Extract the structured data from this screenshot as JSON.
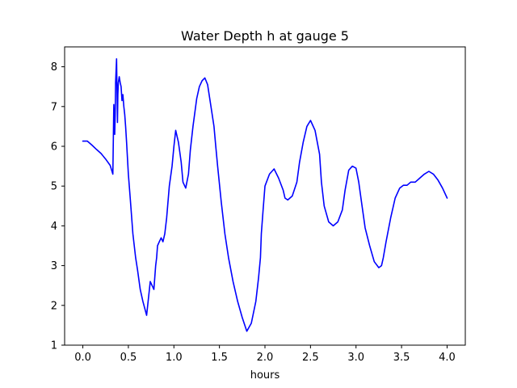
{
  "chart_data": {
    "type": "line",
    "title": "Water Depth h at gauge 5",
    "xlabel": "hours",
    "ylabel": "",
    "xlim": [
      -0.2,
      4.2
    ],
    "ylim": [
      1,
      8.5
    ],
    "xticks": [
      0.0,
      0.5,
      1.0,
      1.5,
      2.0,
      2.5,
      3.0,
      3.5,
      4.0
    ],
    "xtick_labels": [
      "0.0",
      "0.5",
      "1.0",
      "1.5",
      "2.0",
      "2.5",
      "3.0",
      "3.5",
      "4.0"
    ],
    "yticks": [
      1,
      2,
      3,
      4,
      5,
      6,
      7,
      8
    ],
    "ytick_labels": [
      "1",
      "2",
      "3",
      "4",
      "5",
      "6",
      "7",
      "8"
    ],
    "grid": false,
    "legend": "none",
    "line_color": "#0000ff",
    "series": [
      {
        "x": [
          0.0,
          0.05,
          0.1,
          0.15,
          0.2,
          0.25,
          0.3,
          0.33,
          0.34,
          0.35,
          0.355,
          0.36,
          0.37,
          0.38,
          0.385,
          0.39,
          0.4,
          0.41,
          0.42,
          0.43,
          0.44,
          0.45,
          0.46,
          0.47,
          0.48,
          0.49,
          0.5,
          0.52,
          0.55,
          0.58,
          0.6,
          0.63,
          0.66,
          0.7,
          0.74,
          0.78,
          0.8,
          0.81,
          0.82,
          0.84,
          0.86,
          0.88,
          0.9,
          0.92,
          0.95,
          0.98,
          1.0,
          1.02,
          1.05,
          1.08,
          1.1,
          1.13,
          1.16,
          1.18,
          1.21,
          1.25,
          1.28,
          1.31,
          1.34,
          1.37,
          1.4,
          1.44,
          1.46,
          1.48,
          1.52,
          1.56,
          1.6,
          1.65,
          1.7,
          1.75,
          1.8,
          1.85,
          1.9,
          1.93,
          1.95,
          1.96,
          1.98,
          2.0,
          2.05,
          2.1,
          2.15,
          2.2,
          2.22,
          2.25,
          2.3,
          2.35,
          2.38,
          2.42,
          2.46,
          2.5,
          2.55,
          2.6,
          2.62,
          2.65,
          2.7,
          2.75,
          2.8,
          2.85,
          2.88,
          2.92,
          2.96,
          3.0,
          3.03,
          3.06,
          3.1,
          3.15,
          3.2,
          3.25,
          3.28,
          3.3,
          3.33,
          3.38,
          3.43,
          3.48,
          3.52,
          3.56,
          3.6,
          3.65,
          3.7,
          3.75,
          3.8,
          3.85,
          3.9,
          3.95,
          4.0
        ],
        "values": [
          6.13,
          6.13,
          6.03,
          5.92,
          5.82,
          5.68,
          5.52,
          5.3,
          7.05,
          6.3,
          6.8,
          7.6,
          8.2,
          6.6,
          7.3,
          7.6,
          7.75,
          7.6,
          7.5,
          7.15,
          7.3,
          7.0,
          6.8,
          6.5,
          6.1,
          5.7,
          5.3,
          4.7,
          3.8,
          3.2,
          2.9,
          2.4,
          2.1,
          1.75,
          2.6,
          2.4,
          3.0,
          3.2,
          3.5,
          3.6,
          3.7,
          3.6,
          3.8,
          4.2,
          5.0,
          5.5,
          6.0,
          6.4,
          6.1,
          5.6,
          5.1,
          4.95,
          5.3,
          5.9,
          6.5,
          7.2,
          7.5,
          7.65,
          7.72,
          7.55,
          7.1,
          6.5,
          6.0,
          5.5,
          4.6,
          3.8,
          3.2,
          2.6,
          2.1,
          1.7,
          1.35,
          1.55,
          2.1,
          2.7,
          3.2,
          3.8,
          4.4,
          5.0,
          5.3,
          5.43,
          5.2,
          4.9,
          4.7,
          4.65,
          4.75,
          5.1,
          5.6,
          6.1,
          6.5,
          6.65,
          6.4,
          5.8,
          5.1,
          4.5,
          4.1,
          4.0,
          4.1,
          4.4,
          4.9,
          5.4,
          5.5,
          5.45,
          5.1,
          4.6,
          3.95,
          3.5,
          3.1,
          2.95,
          3.0,
          3.2,
          3.6,
          4.2,
          4.7,
          4.95,
          5.02,
          5.02,
          5.1,
          5.1,
          5.2,
          5.3,
          5.37,
          5.3,
          5.15,
          4.95,
          4.7
        ]
      }
    ]
  }
}
